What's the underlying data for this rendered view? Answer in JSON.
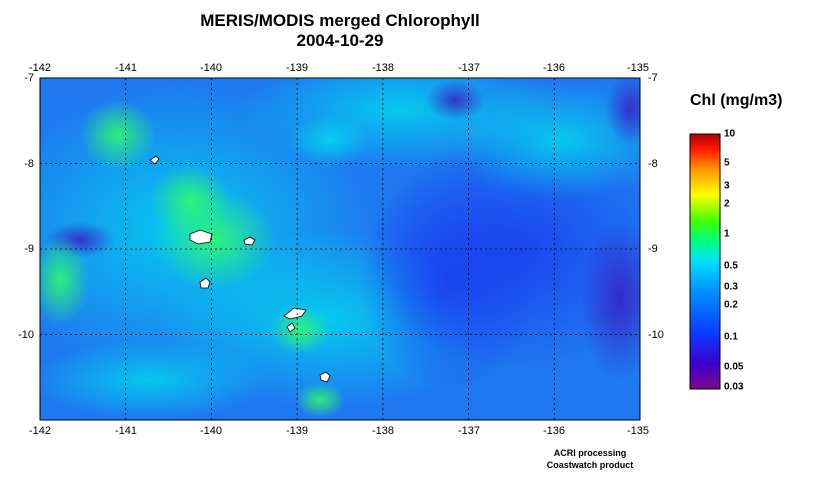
{
  "title": {
    "line1": "MERIS/MODIS merged Chlorophyll",
    "line2": "2004-10-29"
  },
  "map": {
    "lon_range": [
      -142,
      -135
    ],
    "lat_range": [
      -11,
      -7
    ],
    "lon_ticks": [
      "-142",
      "-141",
      "-140",
      "-139",
      "-138",
      "-137",
      "-136",
      "-135"
    ],
    "lat_ticks_left": [
      "-7",
      "-8",
      "-9",
      "-10"
    ],
    "lat_ticks_right": [
      "-7",
      "-8",
      "-9",
      "-10"
    ],
    "grid": "dashed",
    "land_color": "#ffffff"
  },
  "colorbar": {
    "title": "Chl (mg/m3)",
    "labels": [
      "10",
      "5",
      "3",
      "2",
      "1",
      "0.5",
      "0.3",
      "0.2",
      "0.1",
      "0.05",
      "0.03"
    ],
    "scale": "log",
    "colors": [
      "#7a0a8a",
      "#2a00ff",
      "#0066ff",
      "#00c8ff",
      "#00ff66",
      "#66ff00",
      "#ffff00",
      "#ff9900",
      "#ff0000",
      "#b00000"
    ]
  },
  "credits": {
    "line1": "ACRI processing",
    "line2": "Coastwatch product"
  }
}
